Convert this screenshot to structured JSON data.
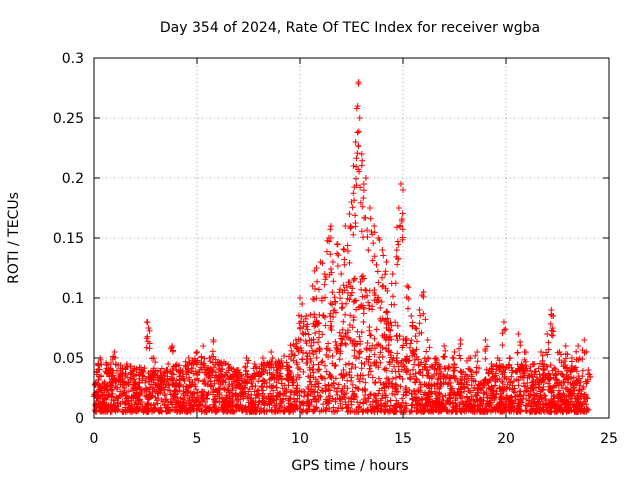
{
  "chart_data": {
    "type": "scatter",
    "title": "Day 354 of 2024, Rate Of TEC Index for receiver wgba",
    "xlabel": "GPS time / hours",
    "ylabel": "ROTI / TECUs",
    "xlim": [
      0,
      25
    ],
    "ylim": [
      0,
      0.3
    ],
    "xticks": [
      0,
      5,
      10,
      15,
      20,
      25
    ],
    "xtick_labels": [
      "0",
      "5",
      "10",
      "15",
      "20",
      "25"
    ],
    "yticks": [
      0,
      0.05,
      0.1,
      0.15,
      0.2,
      0.25,
      0.3
    ],
    "ytick_labels": [
      "0",
      "0.05",
      "0.1",
      "0.15",
      "0.2",
      "0.25",
      "0.3"
    ],
    "grid": true,
    "marker": "plus",
    "color": "#ff0000",
    "series": [
      {
        "name": "ROTI",
        "points": [
          [
            0.1,
            0.02
          ],
          [
            0.2,
            0.045
          ],
          [
            0.3,
            0.05
          ],
          [
            0.5,
            0.03
          ],
          [
            0.8,
            0.04
          ],
          [
            1.0,
            0.055
          ],
          [
            1.3,
            0.035
          ],
          [
            1.6,
            0.045
          ],
          [
            2.0,
            0.03
          ],
          [
            2.3,
            0.04
          ],
          [
            2.6,
            0.08
          ],
          [
            2.65,
            0.075
          ],
          [
            2.9,
            0.05
          ],
          [
            3.3,
            0.035
          ],
          [
            3.6,
            0.045
          ],
          [
            3.8,
            0.06
          ],
          [
            4.2,
            0.04
          ],
          [
            4.6,
            0.05
          ],
          [
            5.0,
            0.055
          ],
          [
            5.3,
            0.06
          ],
          [
            5.6,
            0.05
          ],
          [
            5.8,
            0.065
          ],
          [
            6.2,
            0.045
          ],
          [
            6.6,
            0.035
          ],
          [
            7.0,
            0.04
          ],
          [
            7.4,
            0.05
          ],
          [
            7.8,
            0.045
          ],
          [
            8.2,
            0.05
          ],
          [
            8.6,
            0.055
          ],
          [
            9.0,
            0.045
          ],
          [
            9.4,
            0.04
          ],
          [
            9.8,
            0.065
          ],
          [
            10.0,
            0.1
          ],
          [
            10.1,
            0.095
          ],
          [
            10.3,
            0.085
          ],
          [
            10.6,
            0.11
          ],
          [
            10.8,
            0.125
          ],
          [
            11.0,
            0.13
          ],
          [
            11.2,
            0.12
          ],
          [
            11.4,
            0.15
          ],
          [
            11.5,
            0.16
          ],
          [
            11.6,
            0.13
          ],
          [
            11.8,
            0.145
          ],
          [
            12.0,
            0.12
          ],
          [
            12.2,
            0.16
          ],
          [
            12.4,
            0.17
          ],
          [
            12.5,
            0.18
          ],
          [
            12.6,
            0.21
          ],
          [
            12.7,
            0.23
          ],
          [
            12.8,
            0.26
          ],
          [
            12.85,
            0.28
          ],
          [
            12.9,
            0.25
          ],
          [
            13.0,
            0.22
          ],
          [
            13.1,
            0.195
          ],
          [
            13.2,
            0.2
          ],
          [
            13.4,
            0.175
          ],
          [
            13.6,
            0.16
          ],
          [
            13.8,
            0.15
          ],
          [
            14.0,
            0.14
          ],
          [
            14.2,
            0.13
          ],
          [
            14.5,
            0.12
          ],
          [
            14.7,
            0.14
          ],
          [
            14.8,
            0.175
          ],
          [
            14.9,
            0.195
          ],
          [
            15.0,
            0.19
          ],
          [
            15.2,
            0.11
          ],
          [
            15.4,
            0.085
          ],
          [
            15.6,
            0.075
          ],
          [
            15.8,
            0.09
          ],
          [
            16.0,
            0.105
          ],
          [
            16.2,
            0.065
          ],
          [
            16.6,
            0.05
          ],
          [
            17.0,
            0.06
          ],
          [
            17.5,
            0.055
          ],
          [
            17.8,
            0.065
          ],
          [
            18.2,
            0.05
          ],
          [
            18.6,
            0.055
          ],
          [
            19.0,
            0.065
          ],
          [
            19.3,
            0.045
          ],
          [
            19.6,
            0.05
          ],
          [
            19.9,
            0.08
          ],
          [
            20.2,
            0.05
          ],
          [
            20.6,
            0.07
          ],
          [
            20.9,
            0.055
          ],
          [
            21.3,
            0.045
          ],
          [
            21.7,
            0.055
          ],
          [
            22.0,
            0.07
          ],
          [
            22.2,
            0.09
          ],
          [
            22.3,
            0.085
          ],
          [
            22.6,
            0.055
          ],
          [
            22.9,
            0.06
          ],
          [
            23.2,
            0.05
          ],
          [
            23.5,
            0.06
          ],
          [
            23.8,
            0.065
          ],
          [
            24.0,
            0.04
          ]
        ]
      }
    ],
    "noise_envelope": {
      "description": "dense low-level scatter, min/max ROTI by hour",
      "hours": [
        0,
        1,
        2,
        3,
        4,
        5,
        6,
        7,
        8,
        9,
        10,
        11,
        12,
        13,
        14,
        15,
        16,
        17,
        18,
        19,
        20,
        21,
        22,
        23,
        24
      ],
      "low": [
        0.005,
        0.005,
        0.005,
        0.005,
        0.005,
        0.005,
        0.005,
        0.005,
        0.005,
        0.005,
        0.005,
        0.005,
        0.005,
        0.005,
        0.005,
        0.005,
        0.005,
        0.005,
        0.005,
        0.005,
        0.005,
        0.005,
        0.005,
        0.005,
        0.005
      ],
      "high": [
        0.05,
        0.045,
        0.045,
        0.04,
        0.045,
        0.05,
        0.05,
        0.04,
        0.045,
        0.05,
        0.07,
        0.09,
        0.11,
        0.12,
        0.1,
        0.07,
        0.05,
        0.045,
        0.04,
        0.04,
        0.045,
        0.045,
        0.045,
        0.045,
        0.04
      ]
    }
  }
}
